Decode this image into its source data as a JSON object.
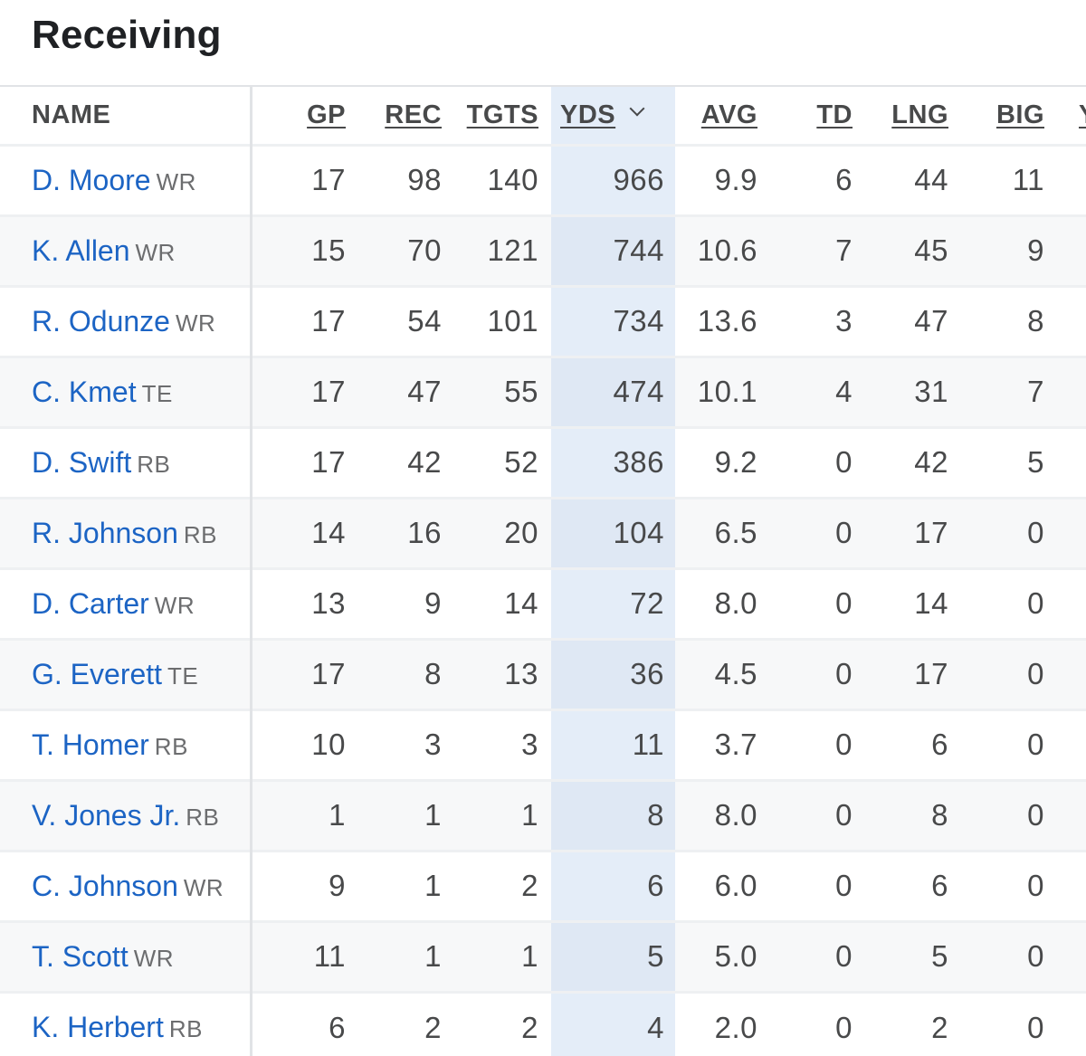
{
  "section": {
    "title": "Receiving"
  },
  "table": {
    "columns": [
      {
        "key": "name",
        "label": "NAME"
      },
      {
        "key": "gp",
        "label": "GP"
      },
      {
        "key": "rec",
        "label": "REC"
      },
      {
        "key": "tgts",
        "label": "TGTS"
      },
      {
        "key": "yds",
        "label": "YDS"
      },
      {
        "key": "avg",
        "label": "AVG"
      },
      {
        "key": "td",
        "label": "TD"
      },
      {
        "key": "lng",
        "label": "LNG"
      },
      {
        "key": "big",
        "label": "BIG"
      },
      {
        "key": "yac",
        "label": "Y"
      }
    ],
    "sorted_column": "yds",
    "sort_icon": "chevron-down-icon",
    "rows": [
      {
        "name": "D. Moore",
        "pos": "WR",
        "gp": "17",
        "rec": "98",
        "tgts": "140",
        "yds": "966",
        "avg": "9.9",
        "td": "6",
        "lng": "44",
        "big": "11"
      },
      {
        "name": "K. Allen",
        "pos": "WR",
        "gp": "15",
        "rec": "70",
        "tgts": "121",
        "yds": "744",
        "avg": "10.6",
        "td": "7",
        "lng": "45",
        "big": "9"
      },
      {
        "name": "R. Odunze",
        "pos": "WR",
        "gp": "17",
        "rec": "54",
        "tgts": "101",
        "yds": "734",
        "avg": "13.6",
        "td": "3",
        "lng": "47",
        "big": "8"
      },
      {
        "name": "C. Kmet",
        "pos": "TE",
        "gp": "17",
        "rec": "47",
        "tgts": "55",
        "yds": "474",
        "avg": "10.1",
        "td": "4",
        "lng": "31",
        "big": "7"
      },
      {
        "name": "D. Swift",
        "pos": "RB",
        "gp": "17",
        "rec": "42",
        "tgts": "52",
        "yds": "386",
        "avg": "9.2",
        "td": "0",
        "lng": "42",
        "big": "5"
      },
      {
        "name": "R. Johnson",
        "pos": "RB",
        "gp": "14",
        "rec": "16",
        "tgts": "20",
        "yds": "104",
        "avg": "6.5",
        "td": "0",
        "lng": "17",
        "big": "0"
      },
      {
        "name": "D. Carter",
        "pos": "WR",
        "gp": "13",
        "rec": "9",
        "tgts": "14",
        "yds": "72",
        "avg": "8.0",
        "td": "0",
        "lng": "14",
        "big": "0"
      },
      {
        "name": "G. Everett",
        "pos": "TE",
        "gp": "17",
        "rec": "8",
        "tgts": "13",
        "yds": "36",
        "avg": "4.5",
        "td": "0",
        "lng": "17",
        "big": "0"
      },
      {
        "name": "T. Homer",
        "pos": "RB",
        "gp": "10",
        "rec": "3",
        "tgts": "3",
        "yds": "11",
        "avg": "3.7",
        "td": "0",
        "lng": "6",
        "big": "0"
      },
      {
        "name": "V. Jones Jr.",
        "pos": "RB",
        "gp": "1",
        "rec": "1",
        "tgts": "1",
        "yds": "8",
        "avg": "8.0",
        "td": "0",
        "lng": "8",
        "big": "0"
      },
      {
        "name": "C. Johnson",
        "pos": "WR",
        "gp": "9",
        "rec": "1",
        "tgts": "2",
        "yds": "6",
        "avg": "6.0",
        "td": "0",
        "lng": "6",
        "big": "0"
      },
      {
        "name": "T. Scott",
        "pos": "WR",
        "gp": "11",
        "rec": "1",
        "tgts": "1",
        "yds": "5",
        "avg": "5.0",
        "td": "0",
        "lng": "5",
        "big": "0"
      },
      {
        "name": "K. Herbert",
        "pos": "RB",
        "gp": "6",
        "rec": "2",
        "tgts": "2",
        "yds": "4",
        "avg": "2.0",
        "td": "0",
        "lng": "2",
        "big": "0"
      }
    ]
  }
}
